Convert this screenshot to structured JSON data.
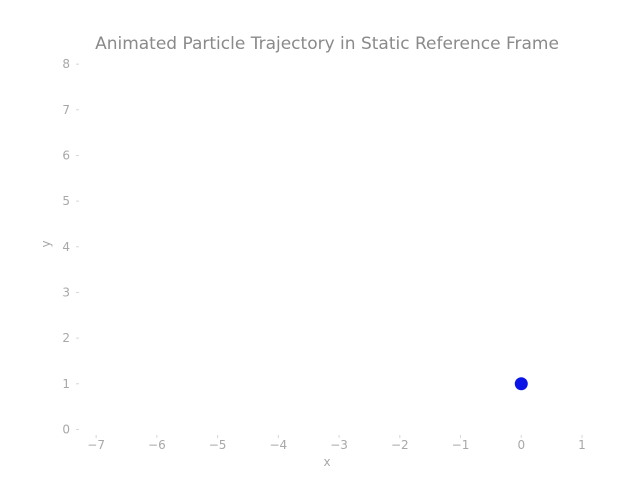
{
  "chart_data": {
    "type": "scatter",
    "title": "Animated Particle Trajectory in Static Reference Frame",
    "xlabel": "x",
    "ylabel": "y",
    "xlim": [
      -7.2,
      1.0
    ],
    "ylim": [
      -0.1,
      8.2
    ],
    "x_ticks": [
      -7,
      -6,
      -5,
      -4,
      -3,
      -2,
      -1,
      0,
      1
    ],
    "x_tick_labels": [
      "−7",
      "−6",
      "−5",
      "−4",
      "−3",
      "−2",
      "−1",
      "0",
      "1"
    ],
    "y_ticks": [
      0,
      1,
      2,
      3,
      4,
      5,
      6,
      7,
      8
    ],
    "y_tick_labels": [
      "0",
      "1",
      "2",
      "3",
      "4",
      "5",
      "6",
      "7",
      "8"
    ],
    "grid": false,
    "legend": "none",
    "series": [
      {
        "points": [
          {
            "x": 0,
            "y": 1
          }
        ],
        "color": "#0a14e6"
      }
    ]
  }
}
